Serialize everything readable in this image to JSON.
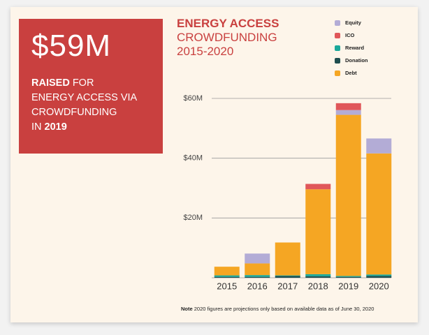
{
  "callout": {
    "figure": "$59M",
    "line1": [
      "RAISED",
      "FOR"
    ],
    "line2": "ENERGY ACCESS VIA",
    "line3": "CROWDFUNDING",
    "line4": [
      "IN",
      "2019"
    ]
  },
  "note": {
    "label": "Note",
    "text": "2020 figures are projections only based on available data as of June 30, 2020"
  },
  "chart_data": {
    "type": "stacked-bar",
    "title": "ENERGY ACCESS",
    "subtitle": "CROWDFUNDING",
    "period": "2015-2020",
    "categories": [
      "2015",
      "2016",
      "2017",
      "2018",
      "2019",
      "2020"
    ],
    "series": [
      {
        "name": "Equity",
        "color": "#b3acd6",
        "values": [
          0,
          3.3,
          0,
          0,
          1.6,
          5.0
        ]
      },
      {
        "name": "ICO",
        "color": "#e0575a",
        "values": [
          0,
          0,
          0,
          1.8,
          2.3,
          0
        ]
      },
      {
        "name": "Reward",
        "color": "#1aa89a",
        "values": [
          0.5,
          0.6,
          0.2,
          0.7,
          0.3,
          0.5
        ]
      },
      {
        "name": "Donation",
        "color": "#1f4e4f",
        "values": [
          0.3,
          0.3,
          0.6,
          0.5,
          0.3,
          0.6
        ]
      },
      {
        "name": "Debt",
        "color": "#f5a623",
        "values": [
          2.9,
          3.9,
          11.0,
          28.4,
          53.9,
          40.5
        ]
      }
    ],
    "ylim": [
      0,
      60
    ],
    "yticks": [
      {
        "value": 20,
        "label": "$20M"
      },
      {
        "value": 40,
        "label": "$40M"
      },
      {
        "value": 60,
        "label": "$60M"
      }
    ],
    "grid": true
  }
}
